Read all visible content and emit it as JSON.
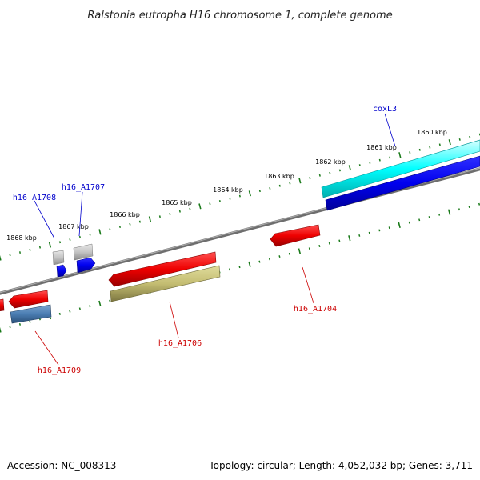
{
  "title": "Ralstonia eutropha H16 chromosome 1, complete genome",
  "accession": "Accession: NC_008313",
  "summary": "Topology: circular; Length: 4,052,032 bp; Genes: 3,711",
  "colors": {
    "backbone": "#808080",
    "ticks": "#1a7a1a",
    "label_forward": "#0000cc",
    "label_reverse": "#cc0000"
  },
  "scale_labels": [
    "1860 kbp",
    "1861 kbp",
    "1862 kbp",
    "1863 kbp",
    "1864 kbp",
    "1865 kbp",
    "1866 kbp",
    "1867 kbp",
    "1868 kbp"
  ],
  "genes": [
    {
      "name": "coxL3",
      "strand": "forward"
    },
    {
      "name": "h16_A1707",
      "strand": "forward"
    },
    {
      "name": "h16_A1708",
      "strand": "forward"
    },
    {
      "name": "h16_A1704",
      "strand": "reverse"
    },
    {
      "name": "h16_A1706",
      "strand": "reverse"
    },
    {
      "name": "h16_A1709",
      "strand": "reverse"
    }
  ]
}
